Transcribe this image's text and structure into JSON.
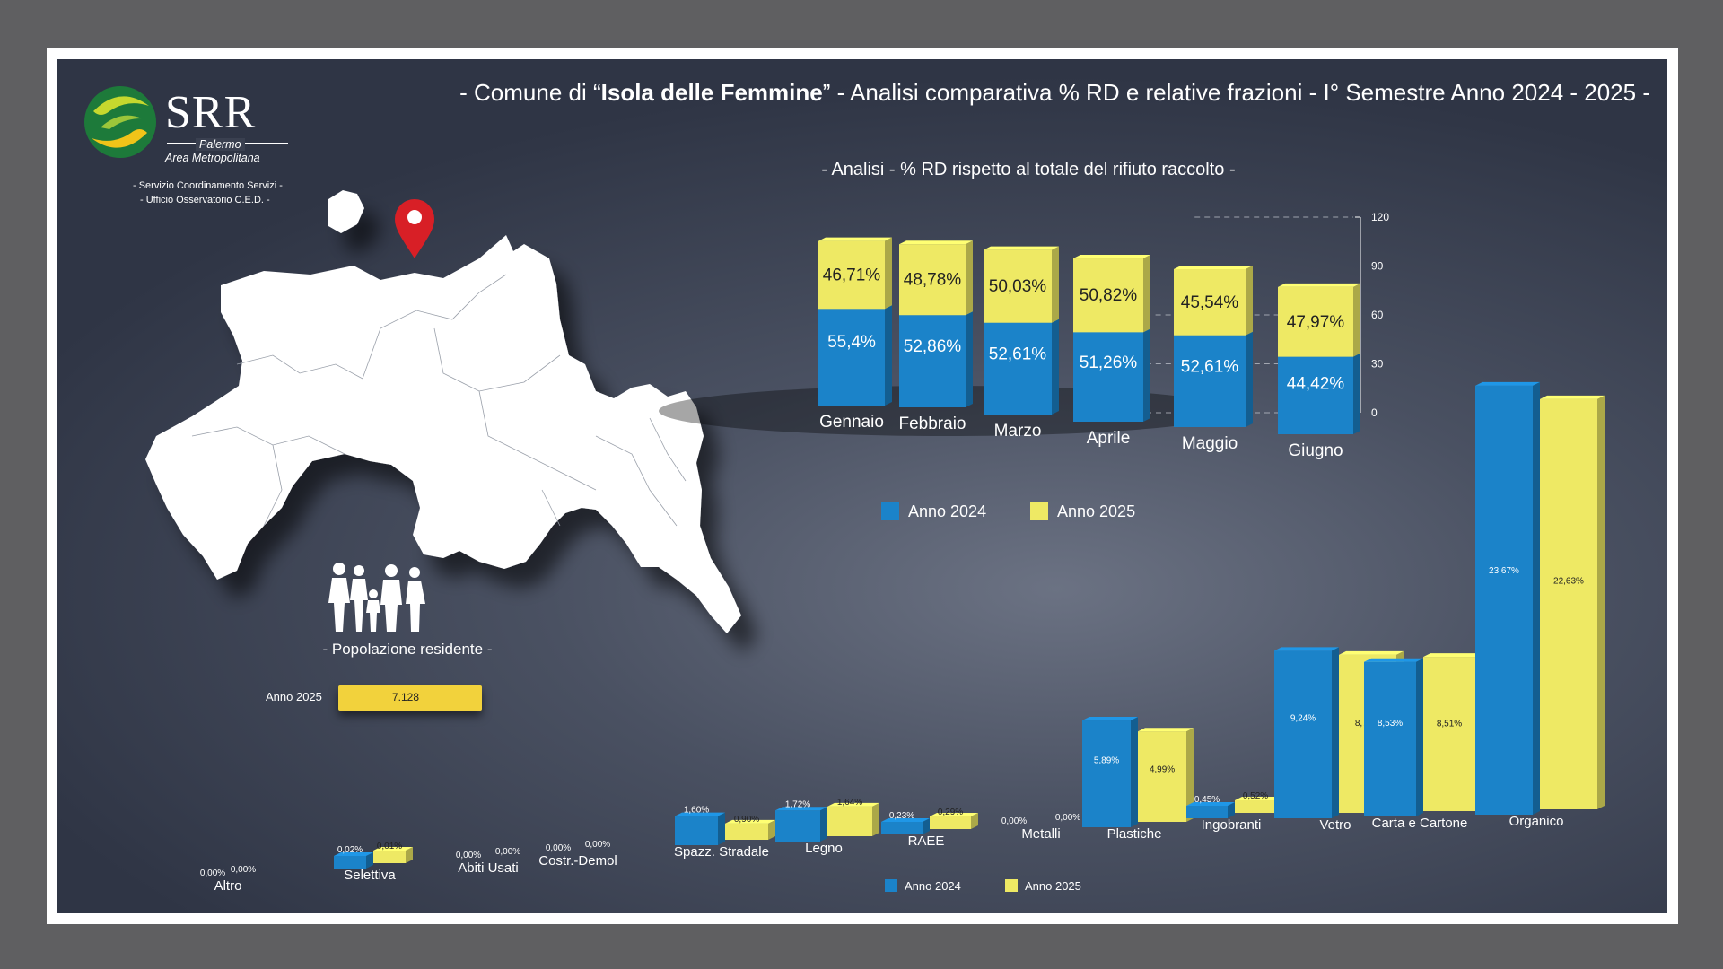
{
  "header": {
    "title_prefix": "- Comune di “",
    "title_bold": "Isola delle Femmine",
    "title_suffix": "” - Analisi comparativa % RD e relative frazioni - I° Semestre Anno 2024 - 2025 -",
    "subtitle": "- Analisi - % RD rispetto al totale del rifiuto raccolto -"
  },
  "logo": {
    "name": "SRR",
    "line1": "Palermo",
    "line2": "Area Metropolitana",
    "service1": "- Servizio Coordinamento Servizi -",
    "service2": "- Ufficio Osservatorio C.E.D. -"
  },
  "population": {
    "title": "- Popolazione residente -",
    "year_label": "Anno 2025",
    "value": "7.128"
  },
  "colors": {
    "anno2024": "#1b83c9",
    "anno2025": "#eee964"
  },
  "chart_data": [
    {
      "type": "bar",
      "stacked": true,
      "categories": [
        "Gennaio",
        "Febbraio",
        "Marzo",
        "Aprile",
        "Maggio",
        "Giugno"
      ],
      "series": [
        {
          "name": "Anno 2024",
          "values": [
            55.4,
            52.86,
            52.61,
            51.26,
            52.61,
            44.42
          ],
          "labels": [
            "55,4%",
            "52,86%",
            "52,61%",
            "51,26%",
            "52,61%",
            "44,42%"
          ]
        },
        {
          "name": "Anno 2025",
          "values": [
            46.71,
            48.78,
            50.03,
            50.82,
            45.54,
            47.97
          ],
          "labels": [
            "46,71%",
            "48,78%",
            "50,03%",
            "50,82%",
            "45,54%",
            "47,97%"
          ]
        }
      ],
      "yticks": [
        "120",
        "90",
        "60",
        "30",
        "0"
      ],
      "ylim": [
        0,
        120
      ],
      "legend": "bottom"
    },
    {
      "type": "bar",
      "categories": [
        "Altro",
        "Selettiva",
        "Abiti Usati",
        "Costr.-Demol",
        "Spazz. Stradale",
        "Legno",
        "RAEE",
        "Metalli",
        "Plastiche",
        "Ingobranti",
        "Vetro",
        "Carta e Cartone",
        "Organico"
      ],
      "series": [
        {
          "name": "Anno 2024",
          "values": [
            0,
            0.02,
            0,
            0,
            1.6,
            1.72,
            0.23,
            0,
            5.89,
            0.45,
            9.24,
            8.53,
            23.67
          ],
          "labels": [
            "0,00%",
            "0,02%",
            "0,00%",
            "0,00%",
            "1,60%",
            "1,72%",
            "0,23%",
            "0,00%",
            "5,89%",
            "0,45%",
            "9,24%",
            "8,53%",
            "23,67%"
          ]
        },
        {
          "name": "Anno 2025",
          "values": [
            0,
            0.01,
            0,
            0,
            0.9,
            1.64,
            0.29,
            0,
            4.99,
            0.52,
            8.72,
            8.51,
            22.63
          ],
          "labels": [
            "0,00%",
            "0,01%",
            "0,00%",
            "0,00%",
            "0,90%",
            "1,64%",
            "0,29%",
            "0,00%",
            "4,99%",
            "0,52%",
            "8,72%",
            "8,51%",
            "22,63%"
          ]
        }
      ],
      "legend": "bottom"
    }
  ]
}
